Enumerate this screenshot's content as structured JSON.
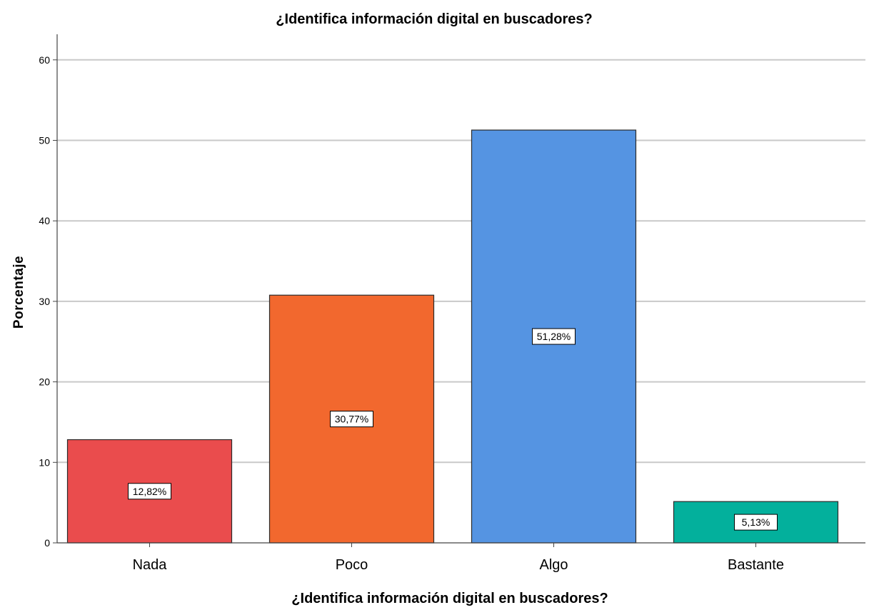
{
  "chart_data": {
    "type": "bar",
    "title": "¿Identifica información digital en buscadores?",
    "xlabel": "¿Identifica información digital en buscadores?",
    "ylabel": "Porcentaje",
    "categories": [
      "Nada",
      "Poco",
      "Algo",
      "Bastante"
    ],
    "values": [
      12.82,
      30.77,
      51.28,
      5.13
    ],
    "data_labels": [
      "12,82%",
      "30,77%",
      "51,28%",
      "5,13%"
    ],
    "colors": [
      "#ea4c4d",
      "#f2682e",
      "#5594e2",
      "#03b09c"
    ],
    "ylim": [
      0,
      62
    ],
    "yticks": [
      0,
      10,
      20,
      30,
      40,
      50,
      60
    ],
    "grid": true,
    "legend": "none"
  }
}
